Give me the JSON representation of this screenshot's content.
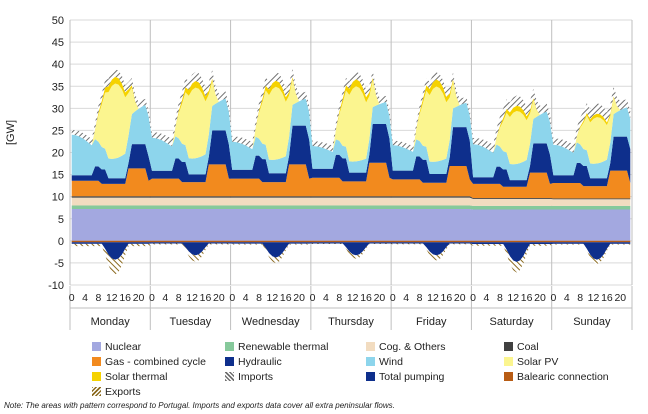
{
  "chart_data": {
    "type": "area",
    "ylabel": "[GW]",
    "ylim": [
      -10,
      50
    ],
    "yticks": [
      -10,
      -5,
      0,
      5,
      10,
      15,
      20,
      25,
      30,
      35,
      40,
      45,
      50
    ],
    "hour_ticks": [
      "0",
      "4",
      "8",
      "12",
      "16",
      "20"
    ],
    "days": [
      "Monday",
      "Tuesday",
      "Wednesday",
      "Thursday",
      "Friday",
      "Saturday",
      "Sunday"
    ],
    "grid": true,
    "legend_position": "bottom",
    "stack_positive": [
      "Nuclear",
      "Renewable thermal",
      "Cog. & Others",
      "Coal",
      "Gas - combined cycle",
      "Hydraulic",
      "Wind",
      "Solar PV",
      "Solar thermal",
      "Imports"
    ],
    "stack_negative": [
      "Balearic connection",
      "Total pumping",
      "Exports"
    ],
    "series": [
      {
        "name": "Nuclear",
        "color": "#a3a8e0",
        "pattern": false,
        "values_by_day": [
          7.2,
          7.2,
          7.2,
          7.2,
          7.2,
          7.1,
          7.1
        ]
      },
      {
        "name": "Renewable thermal",
        "color": "#86c99b",
        "pattern": false,
        "values_by_day": [
          0.8,
          0.8,
          0.8,
          0.8,
          0.8,
          0.8,
          0.8
        ]
      },
      {
        "name": "Cog. & Others",
        "color": "#f2dcc0",
        "pattern": false,
        "values_by_day": [
          1.8,
          1.8,
          1.8,
          1.8,
          1.8,
          1.6,
          1.5
        ]
      },
      {
        "name": "Coal",
        "color": "#404040",
        "pattern": false,
        "values_by_day": [
          0.3,
          0.3,
          0.3,
          0.3,
          0.3,
          0.2,
          0.2
        ]
      },
      {
        "name": "Gas - combined cycle",
        "color": "#f28a1e",
        "pattern": false,
        "values_by_day": [
          3.5,
          4.0,
          4.0,
          4.2,
          3.8,
          3.2,
          3.5
        ]
      },
      {
        "name": "Hydraulic",
        "color": "#0e2f8c",
        "pattern": false,
        "values_by_day": [
          2.5,
          3.5,
          4.0,
          4.0,
          4.0,
          3.0,
          3.5
        ]
      },
      {
        "name": "Wind",
        "color": "#8dd5ec",
        "pattern": false,
        "values_by_day": [
          8.0,
          6.5,
          5.5,
          4.5,
          5.0,
          6.5,
          6.0
        ]
      },
      {
        "name": "Solar PV",
        "color": "#fbf58f",
        "pattern": false,
        "values_by_day": [
          17.0,
          16.0,
          16.5,
          17.0,
          17.0,
          12.0,
          10.5
        ]
      },
      {
        "name": "Solar thermal",
        "color": "#f5d200",
        "pattern": false,
        "values_by_day": [
          1.5,
          1.5,
          1.4,
          1.6,
          1.6,
          1.2,
          0.8
        ]
      },
      {
        "name": "Imports",
        "color": "#6f6f6f",
        "pattern": true,
        "values_by_day": [
          1.5,
          1.8,
          1.7,
          1.5,
          1.4,
          2.0,
          2.0
        ]
      },
      {
        "name": "Total pumping",
        "color": "#0e2f8c",
        "pattern": false,
        "values_by_day": [
          -4.0,
          -3.0,
          -3.5,
          -3.0,
          -3.0,
          -4.5,
          -4.0
        ]
      },
      {
        "name": "Balearic connection",
        "color": "#b85c14",
        "pattern": false,
        "values_by_day": [
          -0.3,
          -0.3,
          -0.3,
          -0.3,
          -0.3,
          -0.3,
          -0.3
        ]
      },
      {
        "name": "Exports",
        "color": "#8b6a1f",
        "pattern": true,
        "values_by_day": [
          -3.5,
          -1.5,
          -1.3,
          -0.8,
          -1.2,
          -2.5,
          -1.0
        ]
      }
    ]
  },
  "legend": [
    {
      "label": "Nuclear",
      "color": "#a3a8e0",
      "pattern": false
    },
    {
      "label": "Renewable thermal",
      "color": "#86c99b",
      "pattern": false
    },
    {
      "label": "Cog. & Others",
      "color": "#f2dcc0",
      "pattern": false
    },
    {
      "label": "Coal",
      "color": "#404040",
      "pattern": false
    },
    {
      "label": "Gas - combined cycle",
      "color": "#f28a1e",
      "pattern": false
    },
    {
      "label": "Hydraulic",
      "color": "#0e2f8c",
      "pattern": false
    },
    {
      "label": "Wind",
      "color": "#8dd5ec",
      "pattern": false
    },
    {
      "label": "Solar PV",
      "color": "#fbf58f",
      "pattern": false
    },
    {
      "label": "Solar thermal",
      "color": "#f5d200",
      "pattern": false
    },
    {
      "label": "Imports",
      "color": "#6f6f6f",
      "pattern": true
    },
    {
      "label": "Total pumping",
      "color": "#0e2f8c",
      "pattern": false
    },
    {
      "label": "Balearic connection",
      "color": "#b85c14",
      "pattern": false
    },
    {
      "label": "Exports",
      "color": "#8b6a1f",
      "pattern": true
    }
  ],
  "note": "Note: The areas with pattern correspond to Portugal. Imports and exports data cover all extra peninsular flows."
}
